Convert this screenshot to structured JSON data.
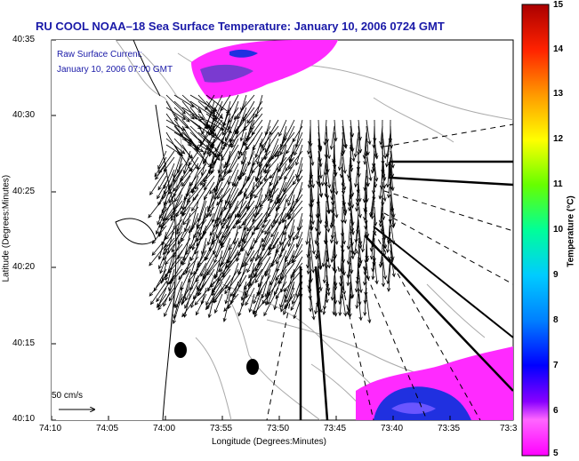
{
  "title": "RU COOL   NOAA–18  Sea Surface Temperature:  January 10, 2006 0724 GMT",
  "legend": {
    "line1": "Raw Surface Current:",
    "line2": "January 10, 2006 07:00 GMT"
  },
  "axes": {
    "xlabel": "Longitude (Degrees:Minutes)",
    "ylabel": "Latitude (Degrees:Minutes)",
    "xticks": [
      "74:10",
      "74:05",
      "74:00",
      "73:55",
      "73:50",
      "73:45",
      "73:40",
      "73:35",
      "73:3"
    ],
    "yticks": [
      "40:35",
      "40:30",
      "40:25",
      "40:20",
      "40:15",
      "40:10"
    ]
  },
  "colorbar": {
    "label": "Temperature (°C)",
    "ticks": [
      "15",
      "14",
      "13",
      "12",
      "11",
      "10",
      "9",
      "8",
      "7",
      "6",
      "5"
    ]
  },
  "scale": {
    "label": "50 cm/s"
  },
  "colors": {
    "title": "#1a1aa8",
    "sst_warm": "#ff2aff",
    "sst_cool": "#2020ff",
    "land_contour": "#aaaaaa"
  }
}
